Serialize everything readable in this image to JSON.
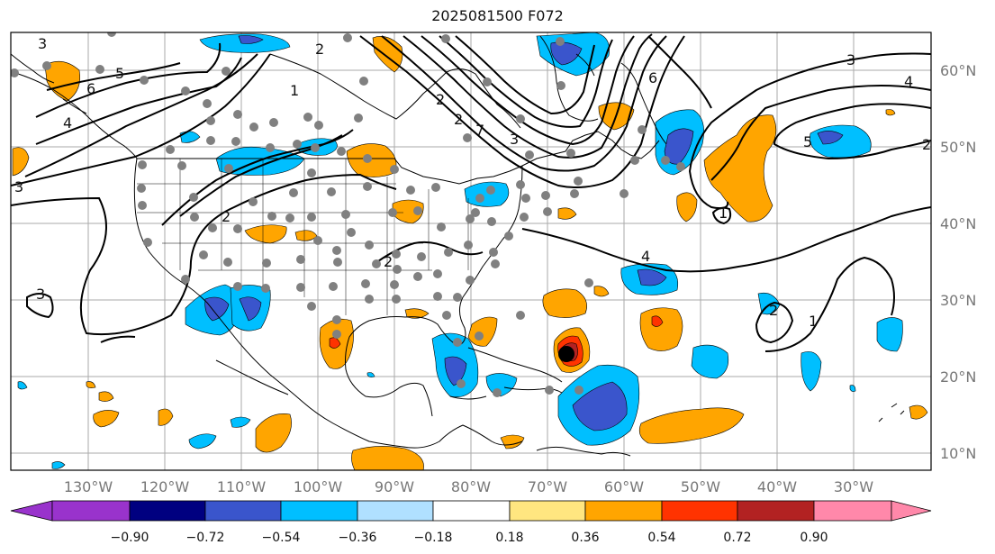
{
  "title": "2025081500 F072",
  "lon_labels": [
    "130°W",
    "120°W",
    "110°W",
    "100°W",
    "90°W",
    "80°W",
    "70°W",
    "60°W",
    "50°W",
    "40°W",
    "30°W"
  ],
  "lat_labels": [
    "60°N",
    "50°N",
    "40°N",
    "30°N",
    "20°N",
    "10°N"
  ],
  "colorbar": {
    "ticks": [
      "−0.90",
      "−0.72",
      "−0.54",
      "−0.36",
      "−0.18",
      "0.18",
      "0.36",
      "0.54",
      "0.72",
      "0.90"
    ],
    "colors": [
      "#9933cc",
      "#000080",
      "#3a55cc",
      "#00bfff",
      "#b0e0ff",
      "#ffffff",
      "#ffe680",
      "#ffa500",
      "#ff3300",
      "#b22222",
      "#ff88aa"
    ]
  },
  "contour_labels": [
    "3",
    "5",
    "6",
    "4",
    "3",
    "2",
    "1",
    "2",
    "3",
    "2",
    "7",
    "6",
    "5",
    "4",
    "3",
    "2",
    "1",
    "4",
    "3",
    "2",
    "2",
    "1",
    "2",
    "1",
    "2",
    "2",
    "1"
  ],
  "colors": {
    "frame": "#000000",
    "grid": "#aaaaaa",
    "station": "#808080",
    "tick_label": "#777777"
  }
}
